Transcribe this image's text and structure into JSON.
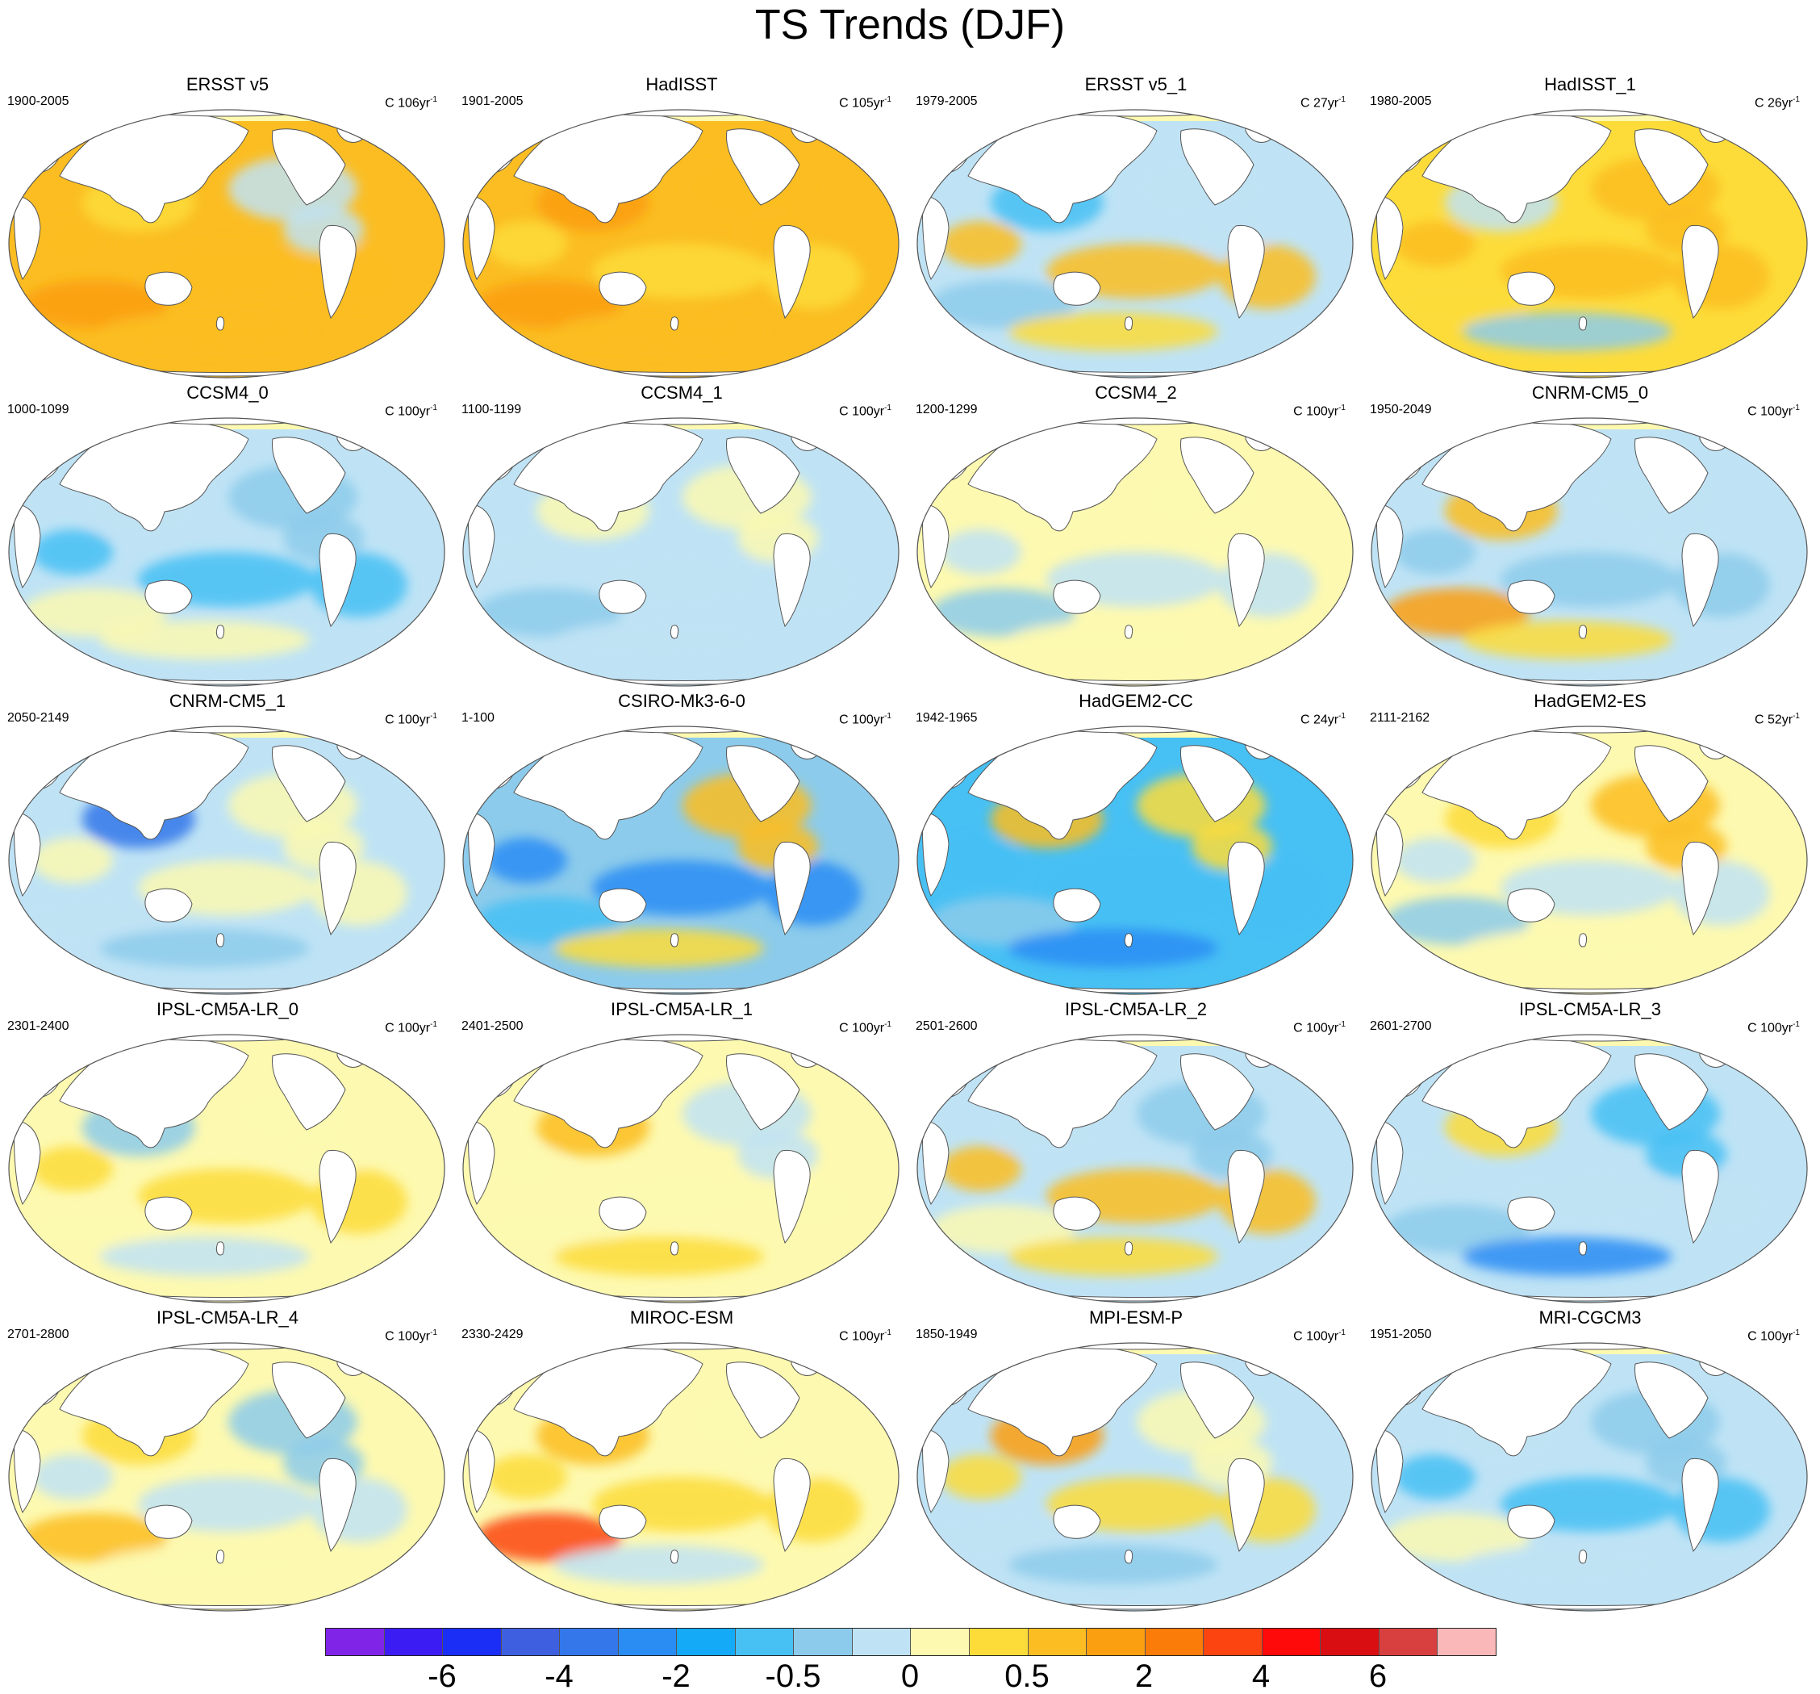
{
  "title": "TS Trends (DJF)",
  "colors": {
    "land": "#ffffff",
    "outline": "#555555",
    "levels": [
      "#8024e8",
      "#3b1cf2",
      "#1a2ef5",
      "#3e5fe0",
      "#3477ea",
      "#2a8df4",
      "#15aaf7",
      "#47c0f4",
      "#8ccbeb",
      "#bfe3f5",
      "#fdf9b0",
      "#fddc3a",
      "#fbbd22",
      "#fb9e10",
      "#fb7c08",
      "#fb4410",
      "#fe0a0a",
      "#d90e12",
      "#d84040",
      "#fbb8b8"
    ]
  },
  "colorbar": {
    "labels": [
      "-6",
      "-4",
      "-2",
      "-0.5",
      "0",
      "0.5",
      "2",
      "4",
      "6"
    ]
  },
  "panels": [
    {
      "title": "ERSST v5",
      "range": "1900-2005",
      "units": "C 106yr",
      "exp": "-1",
      "colors": [
        "#fbbd22",
        "#fddc3a",
        "#fb9e10",
        "#bfe3f5",
        "#fbbd22"
      ]
    },
    {
      "title": "HadISST",
      "range": "1901-2005",
      "units": "C 105yr",
      "exp": "-1",
      "colors": [
        "#fbbd22",
        "#fddc3a",
        "#fb9e10",
        "#fb9e10",
        "#fbbd22"
      ]
    },
    {
      "title": "ERSST v5_1",
      "range": "1979-2005",
      "units": "C 27yr",
      "exp": "-1",
      "colors": [
        "#bfe3f5",
        "#fddc3a",
        "#fbbd22",
        "#47c0f4",
        "#8ccbeb"
      ]
    },
    {
      "title": "HadISST_1",
      "range": "1980-2005",
      "units": "C 26yr",
      "exp": "-1",
      "colors": [
        "#fddc3a",
        "#fbbd22",
        "#8ccbeb",
        "#fbbd22",
        "#bfe3f5"
      ]
    },
    {
      "title": "CCSM4_0",
      "range": "1000-1099",
      "units": "C 100yr",
      "exp": "-1",
      "colors": [
        "#bfe3f5",
        "#fdf9b0",
        "#8ccbeb",
        "#fdf9b0",
        "#47c0f4"
      ]
    },
    {
      "title": "CCSM4_1",
      "range": "1100-1199",
      "units": "C 100yr",
      "exp": "-1",
      "colors": [
        "#bfe3f5",
        "#fdf9b0",
        "#8ccbeb",
        "#fdf9b0",
        "#bfe3f5"
      ]
    },
    {
      "title": "CCSM4_2",
      "range": "1200-1299",
      "units": "C 100yr",
      "exp": "-1",
      "colors": [
        "#fdf9b0",
        "#bfe3f5",
        "#fdf9b0",
        "#8ccbeb",
        "#fdf9b0"
      ]
    },
    {
      "title": "CNRM-CM5_0",
      "range": "1950-2049",
      "units": "C 100yr",
      "exp": "-1",
      "colors": [
        "#bfe3f5",
        "#fddc3a",
        "#8ccbeb",
        "#fbbd22",
        "#fb9e10"
      ]
    },
    {
      "title": "CNRM-CM5_1",
      "range": "2050-2149",
      "units": "C 100yr",
      "exp": "-1",
      "colors": [
        "#bfe3f5",
        "#fdf9b0",
        "#8ccbeb",
        "#fdf9b0",
        "#3477ea"
      ]
    },
    {
      "title": "CSIRO-Mk3-6-0",
      "range": "1-100",
      "units": "C 100yr",
      "exp": "-1",
      "colors": [
        "#8ccbeb",
        "#47c0f4",
        "#fbbd22",
        "#fddc3a",
        "#2a8df4"
      ]
    },
    {
      "title": "HadGEM2-CC",
      "range": "1942-1965",
      "units": "C 24yr",
      "exp": "-1",
      "colors": [
        "#47c0f4",
        "#fbbd22",
        "#8ccbeb",
        "#fddc3a",
        "#2a8df4"
      ]
    },
    {
      "title": "HadGEM2-ES",
      "range": "2111-2162",
      "units": "C 52yr",
      "exp": "-1",
      "colors": [
        "#fdf9b0",
        "#bfe3f5",
        "#fddc3a",
        "#8ccbeb",
        "#fbbd22"
      ]
    },
    {
      "title": "IPSL-CM5A-LR_0",
      "range": "2301-2400",
      "units": "C 100yr",
      "exp": "-1",
      "colors": [
        "#fdf9b0",
        "#bfe3f5",
        "#fddc3a",
        "#8ccbeb",
        "#fdf9b0"
      ]
    },
    {
      "title": "IPSL-CM5A-LR_1",
      "range": "2401-2500",
      "units": "C 100yr",
      "exp": "-1",
      "colors": [
        "#fdf9b0",
        "#bfe3f5",
        "#fddc3a",
        "#fdf9b0",
        "#fbbd22"
      ]
    },
    {
      "title": "IPSL-CM5A-LR_2",
      "range": "2501-2600",
      "units": "C 100yr",
      "exp": "-1",
      "colors": [
        "#bfe3f5",
        "#fdf9b0",
        "#8ccbeb",
        "#fddc3a",
        "#fbbd22"
      ]
    },
    {
      "title": "IPSL-CM5A-LR_3",
      "range": "2601-2700",
      "units": "C 100yr",
      "exp": "-1",
      "colors": [
        "#bfe3f5",
        "#fddc3a",
        "#8ccbeb",
        "#47c0f4",
        "#2a8df4"
      ]
    },
    {
      "title": "IPSL-CM5A-LR_4",
      "range": "2701-2800",
      "units": "C 100yr",
      "exp": "-1",
      "colors": [
        "#fdf9b0",
        "#bfe3f5",
        "#fddc3a",
        "#fbbd22",
        "#8ccbeb"
      ]
    },
    {
      "title": "MIROC-ESM",
      "range": "2330-2429",
      "units": "C 100yr",
      "exp": "-1",
      "colors": [
        "#fdf9b0",
        "#bfe3f5",
        "#fddc3a",
        "#fbbd22",
        "#fb4410"
      ]
    },
    {
      "title": "MPI-ESM-P",
      "range": "1850-1949",
      "units": "C 100yr",
      "exp": "-1",
      "colors": [
        "#bfe3f5",
        "#fdf9b0",
        "#8ccbeb",
        "#fddc3a",
        "#fb9e10"
      ]
    },
    {
      "title": "MRI-CGCM3",
      "range": "1951-2050",
      "units": "C 100yr",
      "exp": "-1",
      "colors": [
        "#bfe3f5",
        "#fdf9b0",
        "#8ccbeb",
        "#bfe3f5",
        "#47c0f4"
      ]
    }
  ]
}
